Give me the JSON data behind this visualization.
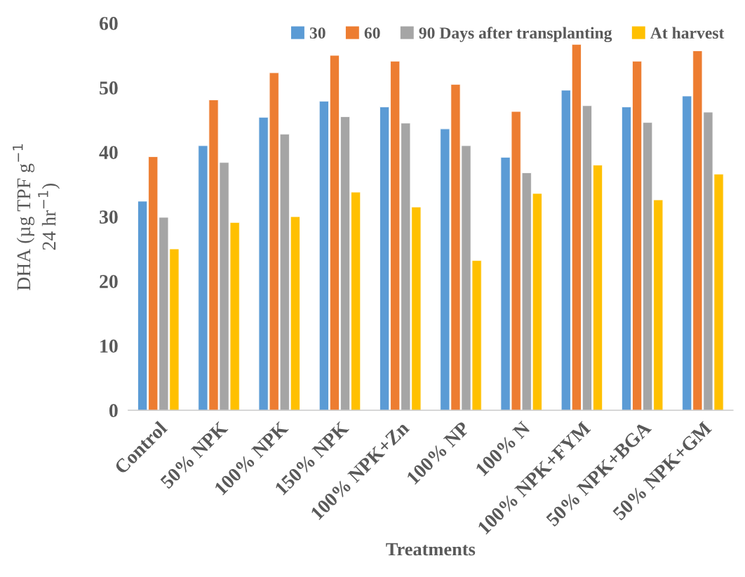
{
  "chart_data": {
    "type": "bar",
    "xlabel": "Treatments",
    "ylabel": "DHA (µg TPF g$^{−1}$\n24 hr$^{−1}$)",
    "categories": [
      "Control",
      "50% NPK",
      "100% NPK",
      "150% NPK",
      "100% NPK+Zn",
      "100% NP",
      "100% N",
      "100% NPK+FYM",
      "50% NPK+BGA",
      "50% NPK+GM"
    ],
    "series": [
      {
        "name": "30",
        "color": "#5b9bd5",
        "values": [
          32.4,
          41.0,
          45.4,
          47.9,
          47.0,
          43.6,
          39.2,
          49.6,
          47.0,
          48.7
        ]
      },
      {
        "name": "60",
        "color": "#ed7d31",
        "values": [
          39.3,
          48.1,
          52.3,
          55.0,
          54.1,
          50.5,
          46.3,
          56.7,
          54.1,
          55.7
        ]
      },
      {
        "name": "90 Days after transplanting",
        "color": "#a5a5a5",
        "values": [
          29.9,
          38.4,
          42.8,
          45.5,
          44.5,
          41.0,
          36.8,
          47.2,
          44.6,
          46.2
        ]
      },
      {
        "name": "At harvest",
        "color": "#ffc000",
        "values": [
          25.0,
          29.1,
          30.0,
          33.8,
          31.5,
          23.2,
          33.6,
          38.0,
          32.6,
          36.6
        ]
      }
    ],
    "ylim": [
      0,
      60
    ],
    "yticks": [
      0,
      10,
      20,
      30,
      40,
      50,
      60
    ],
    "grid": false,
    "legend": "top"
  }
}
